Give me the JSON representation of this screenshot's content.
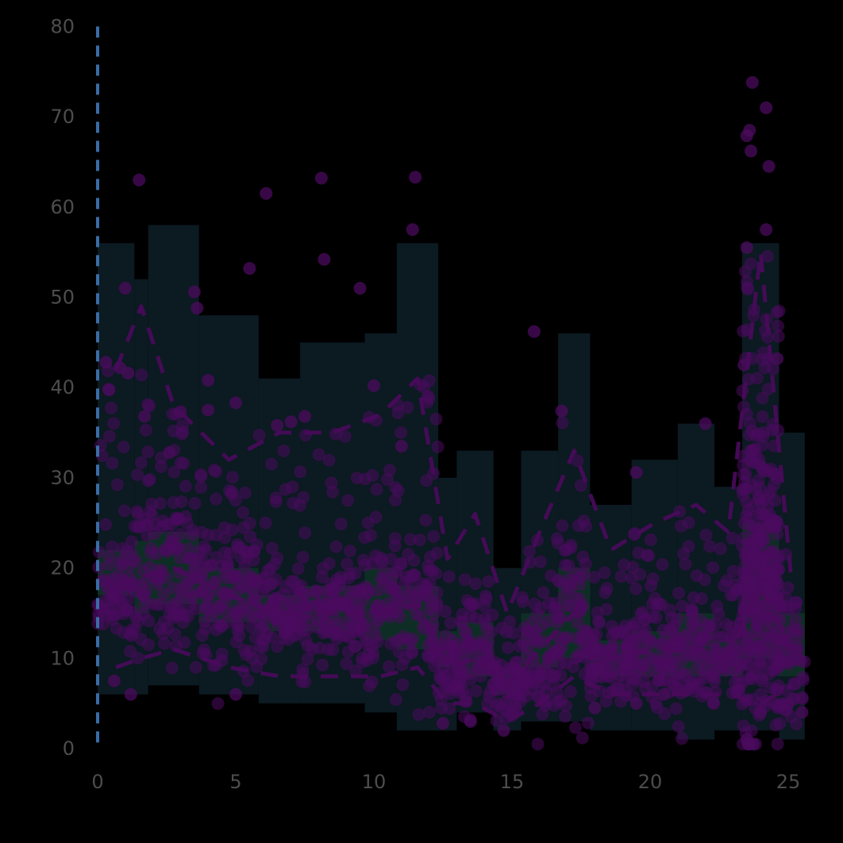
{
  "chart_data": {
    "type": "scatter",
    "title": "",
    "xlabel": "",
    "ylabel": "",
    "xlim": [
      0,
      25.6
    ],
    "ylim": [
      0,
      80
    ],
    "x_ticks": [
      "0",
      "5",
      "10",
      "15",
      "20",
      "25"
    ],
    "y_ticks": [
      "0",
      "10",
      "20",
      "30",
      "40",
      "50",
      "60",
      "70",
      "80"
    ],
    "grid": false,
    "legend": "none",
    "colors": {
      "background": "#000000",
      "points": "#4b0b5e",
      "dashed_quantiles": "#4a0a5c",
      "outer_band": "#0c1a22",
      "inner_band": "#0f3326",
      "vertical_reference": "#3a6da6",
      "tick_text": "#4d4d4d"
    },
    "reference_line": {
      "x": 0
    },
    "bins": [
      {
        "x0": 0,
        "x1": 1.33,
        "outer": [
          6,
          56
        ],
        "inner": [
          17,
          22
        ],
        "lower": 9,
        "median": 18,
        "upper": 42
      },
      {
        "x0": 1.33,
        "x1": 1.83,
        "outer": [
          6,
          52
        ],
        "inner": [
          15,
          23
        ],
        "lower": 10,
        "median": 19,
        "upper": 49
      },
      {
        "x0": 1.83,
        "x1": 3.67,
        "outer": [
          7,
          58
        ],
        "inner": [
          16,
          24
        ],
        "lower": 11,
        "median": 20,
        "upper": 38
      },
      {
        "x0": 3.67,
        "x1": 5.83,
        "outer": [
          6,
          48
        ],
        "inner": [
          14,
          20
        ],
        "lower": 9,
        "median": 17,
        "upper": 32
      },
      {
        "x0": 5.83,
        "x1": 7.33,
        "outer": [
          5,
          41
        ],
        "inner": [
          13,
          17
        ],
        "lower": 8,
        "median": 15,
        "upper": 35
      },
      {
        "x0": 7.33,
        "x1": 9.67,
        "outer": [
          5,
          45
        ],
        "inner": [
          13,
          18
        ],
        "lower": 8,
        "median": 15,
        "upper": 35
      },
      {
        "x0": 9.67,
        "x1": 10.83,
        "outer": [
          4,
          46
        ],
        "inner": [
          12,
          20
        ],
        "lower": 8,
        "median": 15,
        "upper": 37
      },
      {
        "x0": 10.83,
        "x1": 12.33,
        "outer": [
          2,
          56
        ],
        "inner": [
          11,
          18
        ],
        "lower": 9,
        "median": 16,
        "upper": 41
      },
      {
        "x0": 12.33,
        "x1": 13.0,
        "outer": [
          2,
          30
        ],
        "inner": [
          9,
          13
        ],
        "lower": 5,
        "median": 9,
        "upper": 21
      },
      {
        "x0": 13.0,
        "x1": 14.33,
        "outer": [
          4,
          33
        ],
        "inner": [
          8,
          14
        ],
        "lower": 5,
        "median": 10,
        "upper": 26
      },
      {
        "x0": 14.33,
        "x1": 15.33,
        "outer": [
          2,
          20
        ],
        "inner": [
          6,
          9
        ],
        "lower": 3,
        "median": 7,
        "upper": 15
      },
      {
        "x0": 15.33,
        "x1": 16.67,
        "outer": [
          3,
          33
        ],
        "inner": [
          9,
          15
        ],
        "lower": 5,
        "median": 11,
        "upper": 24
      },
      {
        "x0": 16.67,
        "x1": 17.83,
        "outer": [
          3,
          46
        ],
        "inner": [
          10,
          20
        ],
        "lower": 8,
        "median": 15,
        "upper": 33
      },
      {
        "x0": 17.83,
        "x1": 19.33,
        "outer": [
          2,
          27
        ],
        "inner": [
          8,
          12
        ],
        "lower": 6,
        "median": 10,
        "upper": 22
      },
      {
        "x0": 19.33,
        "x1": 21.0,
        "outer": [
          2,
          32
        ],
        "inner": [
          8,
          13
        ],
        "lower": 6,
        "median": 11,
        "upper": 25
      },
      {
        "x0": 21.0,
        "x1": 22.33,
        "outer": [
          1,
          36
        ],
        "inner": [
          8,
          15
        ],
        "lower": 6,
        "median": 11,
        "upper": 27
      },
      {
        "x0": 22.33,
        "x1": 23.33,
        "outer": [
          2,
          29
        ],
        "inner": [
          8,
          12
        ],
        "lower": 6,
        "median": 10,
        "upper": 24
      },
      {
        "x0": 23.33,
        "x1": 24.67,
        "outer": [
          2,
          56
        ],
        "inner": [
          10,
          25
        ],
        "lower": 5,
        "median": 18,
        "upper": 55
      },
      {
        "x0": 24.67,
        "x1": 25.6,
        "outer": [
          1,
          35
        ],
        "inner": [
          8,
          15
        ],
        "lower": 7,
        "median": 11,
        "upper": 18
      }
    ],
    "outliers": [
      [
        1.5,
        63
      ],
      [
        6.1,
        61.5
      ],
      [
        8.1,
        63.2
      ],
      [
        11.5,
        63.3
      ],
      [
        11.4,
        57.5
      ],
      [
        8.2,
        54.2
      ],
      [
        5.5,
        53.2
      ],
      [
        9.5,
        51
      ],
      [
        1.0,
        51
      ],
      [
        3.5,
        50.6
      ],
      [
        3.6,
        48.8
      ],
      [
        15.8,
        46.2
      ],
      [
        0.3,
        42.8
      ],
      [
        0.8,
        42.2
      ],
      [
        1.1,
        41.6
      ],
      [
        4.0,
        40.8
      ],
      [
        5.0,
        38.3
      ],
      [
        10.0,
        40.2
      ],
      [
        4.0,
        37.5
      ],
      [
        3.0,
        37.3
      ],
      [
        6.5,
        35.8
      ],
      [
        7.0,
        36.2
      ],
      [
        7.5,
        36.8
      ],
      [
        11.0,
        33.5
      ],
      [
        16.8,
        37.4
      ],
      [
        22.0,
        36.0
      ],
      [
        19.5,
        30.6
      ],
      [
        0.4,
        39.8
      ],
      [
        1.7,
        36.8
      ],
      [
        2.6,
        32.8
      ],
      [
        23.7,
        73.8
      ],
      [
        24.2,
        71.0
      ],
      [
        23.6,
        68.5
      ],
      [
        23.5,
        67.9
      ],
      [
        23.65,
        66.2
      ],
      [
        24.3,
        64.5
      ],
      [
        24.2,
        57.5
      ],
      [
        23.5,
        55.5
      ],
      [
        24.6,
        43.2
      ],
      [
        23.4,
        42.5
      ],
      [
        14.7,
        2.0
      ],
      [
        23.5,
        1.0
      ],
      [
        25.5,
        4.0
      ],
      [
        0.6,
        7.5
      ],
      [
        1.2,
        6.0
      ],
      [
        5.0,
        6.0
      ],
      [
        12.5,
        2.8
      ],
      [
        13.5,
        3.0
      ],
      [
        19.5,
        5.0
      ],
      [
        20.5,
        6.0
      ],
      [
        22.3,
        5.0
      ],
      [
        24.0,
        4.0
      ],
      [
        18.0,
        4.5
      ],
      [
        25.2,
        5.5
      ]
    ]
  }
}
